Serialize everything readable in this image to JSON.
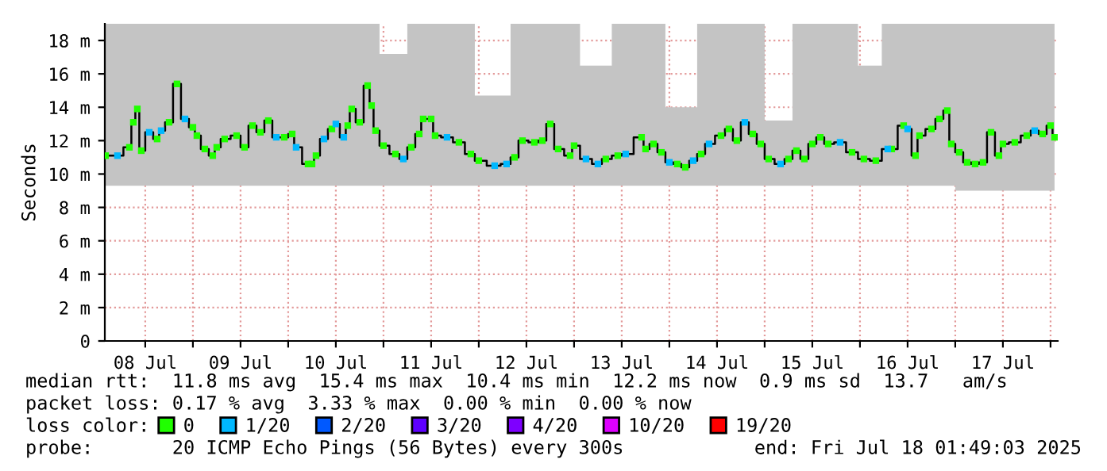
{
  "chart_data": {
    "type": "step",
    "ylabel": "Seconds",
    "x": [
      "2025-07-08T02:00",
      "2025-07-08T05:00",
      "2025-07-08T08:00",
      "2025-07-08T09:00",
      "2025-07-08T10:00",
      "2025-07-08T11:00",
      "2025-07-08T13:00",
      "2025-07-08T15:00",
      "2025-07-08T16:00",
      "2025-07-08T18:00",
      "2025-07-08T20:00",
      "2025-07-08T22:00",
      "2025-07-09T00:00",
      "2025-07-09T01:00",
      "2025-07-09T03:00",
      "2025-07-09T05:00",
      "2025-07-09T06:00",
      "2025-07-09T08:00",
      "2025-07-09T11:00",
      "2025-07-09T13:00",
      "2025-07-09T15:00",
      "2025-07-09T17:00",
      "2025-07-09T19:00",
      "2025-07-09T21:00",
      "2025-07-09T23:00",
      "2025-07-10T01:00",
      "2025-07-10T02:00",
      "2025-07-10T05:00",
      "2025-07-10T06:00",
      "2025-07-10T07:00",
      "2025-07-10T09:00",
      "2025-07-10T11:00",
      "2025-07-10T12:00",
      "2025-07-10T14:00",
      "2025-07-10T15:00",
      "2025-07-10T16:00",
      "2025-07-10T18:00",
      "2025-07-10T20:00",
      "2025-07-10T21:00",
      "2025-07-10T22:00",
      "2025-07-11T00:00",
      "2025-07-11T03:00",
      "2025-07-11T05:00",
      "2025-07-11T07:00",
      "2025-07-11T09:00",
      "2025-07-11T10:00",
      "2025-07-11T12:00",
      "2025-07-11T13:00",
      "2025-07-11T16:00",
      "2025-07-11T19:00",
      "2025-07-11T22:00",
      "2025-07-12T00:00",
      "2025-07-12T04:00",
      "2025-07-12T07:00",
      "2025-07-12T09:00",
      "2025-07-12T11:00",
      "2025-07-12T14:00",
      "2025-07-12T16:00",
      "2025-07-12T18:00",
      "2025-07-12T20:00",
      "2025-07-12T23:00",
      "2025-07-13T00:00",
      "2025-07-13T03:00",
      "2025-07-13T06:00",
      "2025-07-13T08:00",
      "2025-07-13T11:00",
      "2025-07-13T13:00",
      "2025-07-13T17:00",
      "2025-07-13T18:00",
      "2025-07-13T20:00",
      "2025-07-13T22:00",
      "2025-07-14T00:00",
      "2025-07-14T02:00",
      "2025-07-14T04:00",
      "2025-07-14T06:00",
      "2025-07-14T08:00",
      "2025-07-14T10:00",
      "2025-07-14T13:00",
      "2025-07-14T15:00",
      "2025-07-14T17:00",
      "2025-07-14T19:00",
      "2025-07-14T21:00",
      "2025-07-14T23:00",
      "2025-07-15T01:00",
      "2025-07-15T04:00",
      "2025-07-15T06:00",
      "2025-07-15T08:00",
      "2025-07-15T10:00",
      "2025-07-15T12:00",
      "2025-07-15T14:00",
      "2025-07-15T16:00",
      "2025-07-15T19:00",
      "2025-07-15T22:00",
      "2025-07-16T01:00",
      "2025-07-16T04:00",
      "2025-07-16T07:00",
      "2025-07-16T08:00",
      "2025-07-16T11:00",
      "2025-07-16T12:00",
      "2025-07-16T14:00",
      "2025-07-16T15:00",
      "2025-07-16T18:00",
      "2025-07-16T20:00",
      "2025-07-16T22:00",
      "2025-07-16T23:00",
      "2025-07-17T01:00",
      "2025-07-17T03:00",
      "2025-07-17T05:00",
      "2025-07-17T07:00",
      "2025-07-17T09:00",
      "2025-07-17T11:00",
      "2025-07-17T12:00",
      "2025-07-17T15:00",
      "2025-07-17T18:00",
      "2025-07-17T20:00",
      "2025-07-17T22:00",
      "2025-07-18T00:00",
      "2025-07-18T01:00"
    ],
    "series": [
      {
        "color": "#000000",
        "values": [
          11.1,
          11.1,
          11.6,
          13.1,
          13.9,
          11.4,
          12.5,
          12.1,
          12.6,
          13.1,
          15.4,
          13.3,
          12.8,
          12.3,
          11.5,
          11.1,
          11.6,
          12.1,
          12.3,
          11.6,
          12.9,
          12.5,
          13.2,
          12.2,
          12.2,
          12.4,
          11.6,
          10.6,
          10.6,
          11.1,
          12.1,
          12.7,
          13.0,
          12.2,
          12.9,
          13.9,
          13.1,
          15.3,
          14.1,
          12.6,
          11.7,
          11.2,
          10.9,
          11.6,
          12.4,
          13.3,
          13.3,
          12.3,
          12.2,
          11.9,
          11.2,
          10.8,
          10.5,
          10.6,
          11.0,
          12.0,
          11.9,
          12.0,
          13.0,
          11.5,
          11.1,
          11.7,
          10.9,
          10.6,
          10.9,
          11.1,
          11.2,
          12.2,
          11.5,
          11.8,
          11.3,
          10.7,
          10.6,
          10.4,
          10.8,
          11.2,
          11.8,
          12.3,
          12.7,
          12.0,
          13.1,
          12.4,
          11.8,
          10.9,
          10.6,
          10.9,
          11.4,
          10.9,
          11.8,
          12.2,
          11.8,
          11.9,
          11.3,
          10.9,
          10.8,
          11.5,
          11.5,
          12.9,
          12.7,
          11.1,
          12.3,
          12.7,
          13.3,
          13.8,
          11.8,
          11.3,
          10.7,
          10.6,
          10.7,
          12.5,
          11.1,
          11.8,
          11.9,
          12.3,
          12.6,
          12.4,
          12.9,
          12.2
        ],
        "lower": [
          9.3,
          9.3,
          9.3,
          9.3,
          9.3,
          9.3,
          9.3,
          9.3,
          9.3,
          9.3,
          9.3,
          9.3,
          9.3,
          9.3,
          9.3,
          9.3,
          9.3,
          9.3,
          9.3,
          9.3,
          9.3,
          9.3,
          9.3,
          9.3,
          9.3,
          9.3,
          9.3,
          9.3,
          9.3,
          9.3,
          9.3,
          9.3,
          9.3,
          9.3,
          9.3,
          9.3,
          9.3,
          9.3,
          9.3,
          9.3,
          9.3,
          9.3,
          9.3,
          9.3,
          9.3,
          9.3,
          9.3,
          9.3,
          9.3,
          9.3,
          9.3,
          9.3,
          9.3,
          9.3,
          9.3,
          9.3,
          9.3,
          9.3,
          9.3,
          9.3,
          9.3,
          9.3,
          9.3,
          9.3,
          9.3,
          9.3,
          9.3,
          9.3,
          9.3,
          9.3,
          9.3,
          9.3,
          9.3,
          9.3,
          9.3,
          9.3,
          9.3,
          9.3,
          9.3,
          9.3,
          9.3,
          9.3,
          9.3,
          9.3,
          9.3,
          9.3,
          9.3,
          9.3,
          9.3,
          9.3,
          9.3,
          9.3,
          9.3,
          9.3,
          9.3,
          9.3,
          9.3,
          9.3,
          9.3,
          9.3,
          9.3,
          9.3,
          9.3,
          9.3,
          9.3,
          9.0,
          9.0,
          9.0,
          9.0,
          9.0,
          9.0,
          9.0,
          9.0,
          9.0,
          9.0,
          9.0,
          9.0,
          9.0
        ],
        "upper": [
          19,
          19,
          19,
          19,
          19,
          19,
          19,
          19,
          19,
          19,
          19,
          19,
          19,
          19,
          19,
          19,
          19,
          19,
          19,
          19,
          19,
          19,
          19,
          19,
          19,
          19,
          19,
          19,
          19,
          19,
          19,
          19,
          19,
          19,
          19,
          19,
          19,
          19,
          19,
          19,
          17.2,
          17.2,
          17.2,
          19,
          19,
          19,
          19,
          19,
          19,
          19,
          19,
          14.7,
          14.7,
          14.7,
          19,
          19,
          19,
          19,
          19,
          19,
          19,
          19,
          16.5,
          16.5,
          16.5,
          19,
          19,
          19,
          19,
          19,
          19,
          14.0,
          14.0,
          14.0,
          14.0,
          19,
          19,
          19,
          19,
          19,
          19,
          19,
          19,
          13.2,
          13.2,
          13.2,
          19,
          19,
          19,
          19,
          19,
          19,
          19,
          16.5,
          16.5,
          19,
          19,
          19,
          19,
          19,
          19,
          19,
          19,
          19,
          19,
          19,
          19,
          19,
          19,
          19,
          19,
          19,
          19,
          19,
          19,
          19,
          19,
          19
        ]
      },
      {
        "type": "scatter",
        "marker": "square",
        "name": "0",
        "color": "#20ff00",
        "values": [
          11.1,
          null,
          11.6,
          13.1,
          13.9,
          11.4,
          null,
          12.1,
          null,
          13.1,
          15.4,
          null,
          12.8,
          12.3,
          11.5,
          11.1,
          11.6,
          12.1,
          12.3,
          11.6,
          12.9,
          12.5,
          13.2,
          null,
          12.2,
          12.4,
          null,
          10.6,
          10.6,
          11.1,
          null,
          12.7,
          null,
          null,
          12.9,
          13.9,
          13.1,
          15.3,
          14.1,
          12.6,
          11.7,
          11.2,
          null,
          11.6,
          12.4,
          13.3,
          13.3,
          12.3,
          null,
          11.9,
          11.2,
          10.8,
          null,
          null,
          11.0,
          12.0,
          11.9,
          12.0,
          13.0,
          11.5,
          11.1,
          11.7,
          null,
          null,
          10.9,
          11.1,
          null,
          12.2,
          11.5,
          11.8,
          11.3,
          null,
          10.6,
          10.4,
          null,
          11.2,
          null,
          12.3,
          12.7,
          12.0,
          null,
          12.4,
          11.8,
          10.9,
          null,
          10.9,
          11.4,
          10.9,
          11.8,
          12.2,
          11.8,
          null,
          11.3,
          10.9,
          10.8,
          null,
          11.5,
          12.9,
          null,
          11.1,
          12.3,
          12.7,
          13.3,
          13.8,
          11.8,
          11.3,
          10.7,
          10.6,
          10.7,
          12.5,
          11.1,
          11.8,
          11.9,
          12.3,
          null,
          12.4,
          12.9,
          12.2
        ]
      },
      {
        "type": "scatter",
        "marker": "square",
        "name": "1/20",
        "color": "#00b8ff",
        "values": [
          null,
          11.1,
          null,
          null,
          null,
          null,
          12.5,
          null,
          12.6,
          null,
          null,
          13.3,
          null,
          null,
          null,
          null,
          null,
          null,
          null,
          null,
          null,
          null,
          null,
          12.2,
          null,
          null,
          11.6,
          null,
          null,
          null,
          12.1,
          null,
          13.0,
          12.2,
          null,
          null,
          null,
          null,
          null,
          null,
          null,
          null,
          10.9,
          null,
          null,
          null,
          null,
          null,
          12.2,
          null,
          null,
          null,
          10.5,
          10.6,
          null,
          null,
          null,
          null,
          null,
          null,
          null,
          null,
          10.9,
          10.6,
          null,
          null,
          11.2,
          null,
          null,
          null,
          null,
          10.7,
          null,
          null,
          10.8,
          null,
          11.8,
          null,
          null,
          null,
          13.1,
          null,
          null,
          null,
          10.6,
          null,
          null,
          null,
          null,
          null,
          null,
          11.9,
          null,
          null,
          null,
          11.5,
          null,
          null,
          12.7,
          null,
          null,
          null,
          null,
          null,
          null,
          null,
          null,
          null,
          null,
          null,
          null,
          null,
          null,
          null,
          12.6,
          null,
          null,
          null
        ]
      },
      {
        "type": "scatter",
        "marker": "square",
        "name": "2/20",
        "color": "#0059ff",
        "values": [
          null,
          null,
          null,
          null,
          null,
          null,
          null,
          null,
          null,
          null,
          null,
          null,
          null,
          null,
          null,
          null,
          null,
          null,
          null,
          null,
          null,
          null,
          null,
          null,
          null,
          null,
          null,
          null,
          null,
          null,
          null,
          null,
          null,
          null,
          null,
          null,
          null,
          null,
          null,
          null,
          null,
          null,
          null,
          null,
          null,
          null,
          null,
          null,
          null,
          null,
          null,
          null,
          null,
          null,
          null,
          null,
          null,
          null,
          null,
          null,
          null,
          null,
          null,
          null,
          null,
          null,
          null,
          null,
          null,
          null,
          null,
          null,
          null,
          null,
          null,
          null,
          null,
          null,
          null,
          null,
          null,
          null,
          null,
          null,
          null,
          null,
          null,
          null,
          null,
          null,
          null,
          null,
          null,
          null,
          null,
          null,
          null,
          null,
          null,
          null,
          null,
          null,
          null,
          null,
          null,
          null,
          null,
          null,
          null,
          null,
          null,
          null,
          null,
          null,
          null,
          null,
          null,
          null
        ]
      },
      {
        "type": "scatter",
        "marker": "square",
        "name": "3/20",
        "color": "#5e00ff",
        "values": [
          null,
          null,
          null,
          null,
          null,
          null,
          null,
          null,
          null,
          null,
          null,
          null,
          null,
          null,
          null,
          null,
          null,
          null,
          null,
          null,
          null,
          null,
          null,
          null,
          null,
          null,
          null,
          null,
          null,
          null,
          null,
          null,
          null,
          null,
          null,
          null,
          null,
          null,
          null,
          null,
          null,
          null,
          null,
          null,
          null,
          null,
          null,
          null,
          null,
          null,
          null,
          null,
          null,
          null,
          null,
          null,
          null,
          null,
          null,
          null,
          null,
          null,
          null,
          null,
          null,
          null,
          null,
          null,
          null,
          null,
          null,
          null,
          null,
          null,
          null,
          null,
          null,
          null,
          null,
          null,
          null,
          null,
          null,
          null,
          null,
          null,
          null,
          null,
          null,
          null,
          null,
          null,
          null,
          null,
          null,
          null,
          null,
          null,
          null,
          null,
          null,
          null,
          null,
          null,
          null,
          null,
          null,
          null,
          null,
          null,
          null,
          null,
          null,
          null,
          null,
          null,
          null,
          null
        ]
      },
      {
        "type": "scatter",
        "marker": "square",
        "name": "4/20",
        "color": "#7e00ff",
        "values": [
          null,
          null,
          null,
          null,
          null,
          null,
          null,
          null,
          null,
          null,
          null,
          null,
          null,
          null,
          null,
          null,
          null,
          null,
          null,
          null,
          null,
          null,
          null,
          null,
          null,
          null,
          null,
          null,
          null,
          null,
          null,
          null,
          null,
          null,
          null,
          null,
          null,
          null,
          null,
          null,
          null,
          null,
          null,
          null,
          null,
          null,
          null,
          null,
          null,
          null,
          null,
          null,
          null,
          null,
          null,
          null,
          null,
          null,
          null,
          null,
          null,
          null,
          null,
          null,
          null,
          null,
          null,
          null,
          null,
          null,
          null,
          null,
          null,
          null,
          null,
          null,
          null,
          null,
          null,
          null,
          null,
          null,
          null,
          null,
          null,
          null,
          null,
          null,
          null,
          null,
          null,
          null,
          null,
          null,
          null,
          null,
          null,
          null,
          null,
          null,
          null,
          null,
          null,
          null,
          null,
          null,
          null,
          null,
          null,
          null,
          null,
          null,
          null,
          null,
          null,
          null,
          null,
          null
        ]
      },
      {
        "type": "scatter",
        "marker": "square",
        "name": "10/20",
        "color": "#dd00ff",
        "values": [
          null,
          null,
          null,
          null,
          null,
          null,
          null,
          null,
          null,
          null,
          null,
          null,
          null,
          null,
          null,
          null,
          null,
          null,
          null,
          null,
          null,
          null,
          null,
          null,
          null,
          null,
          null,
          null,
          null,
          null,
          null,
          null,
          null,
          null,
          null,
          null,
          null,
          null,
          null,
          null,
          null,
          null,
          null,
          null,
          null,
          null,
          null,
          null,
          null,
          null,
          null,
          null,
          null,
          null,
          null,
          null,
          null,
          null,
          null,
          null,
          null,
          null,
          null,
          null,
          null,
          null,
          null,
          null,
          null,
          null,
          null,
          null,
          null,
          null,
          null,
          null,
          null,
          null,
          null,
          null,
          null,
          null,
          null,
          null,
          null,
          null,
          null,
          null,
          null,
          null,
          null,
          null,
          null,
          null,
          null,
          null,
          null,
          null,
          null,
          null,
          null,
          null,
          null,
          null,
          null,
          null,
          null,
          null,
          null,
          null,
          null,
          null,
          null,
          null,
          null,
          null,
          null,
          null
        ]
      },
      {
        "type": "scatter",
        "marker": "square",
        "name": "19/20",
        "color": "#ff0000",
        "values": [
          null,
          null,
          null,
          null,
          null,
          null,
          null,
          null,
          null,
          null,
          null,
          null,
          null,
          null,
          null,
          null,
          null,
          null,
          null,
          null,
          null,
          null,
          null,
          null,
          null,
          null,
          null,
          null,
          null,
          null,
          null,
          null,
          null,
          null,
          null,
          null,
          null,
          null,
          null,
          null,
          null,
          null,
          null,
          null,
          null,
          null,
          null,
          null,
          null,
          null,
          null,
          null,
          null,
          null,
          null,
          null,
          null,
          null,
          null,
          null,
          null,
          null,
          null,
          null,
          null,
          null,
          null,
          null,
          null,
          null,
          null,
          null,
          null,
          null,
          null,
          null,
          null,
          null,
          null,
          null,
          null,
          null,
          null,
          null,
          null,
          null,
          null,
          null,
          null,
          null,
          null,
          null,
          null,
          null,
          null,
          null,
          null,
          null,
          null,
          null,
          null,
          null,
          null,
          null,
          null,
          null,
          null,
          null,
          null,
          null,
          null,
          null,
          null,
          null,
          null,
          null,
          null,
          null
        ]
      }
    ],
    "xlim": [
      "2025-07-08T01:49",
      "2025-07-18T01:49"
    ],
    "xticks": [
      {
        "value": "2025-07-08T12:00",
        "label": "08 Jul"
      },
      {
        "value": "2025-07-09T00:00",
        "label": null
      },
      {
        "value": "2025-07-09T12:00",
        "label": "09 Jul"
      },
      {
        "value": "2025-07-10T00:00",
        "label": null
      },
      {
        "value": "2025-07-10T12:00",
        "label": "10 Jul"
      },
      {
        "value": "2025-07-11T00:00",
        "label": null
      },
      {
        "value": "2025-07-11T12:00",
        "label": "11 Jul"
      },
      {
        "value": "2025-07-12T00:00",
        "label": null
      },
      {
        "value": "2025-07-12T12:00",
        "label": "12 Jul"
      },
      {
        "value": "2025-07-13T00:00",
        "label": null
      },
      {
        "value": "2025-07-13T12:00",
        "label": "13 Jul"
      },
      {
        "value": "2025-07-14T00:00",
        "label": null
      },
      {
        "value": "2025-07-14T12:00",
        "label": "14 Jul"
      },
      {
        "value": "2025-07-15T00:00",
        "label": null
      },
      {
        "value": "2025-07-15T12:00",
        "label": "15 Jul"
      },
      {
        "value": "2025-07-16T00:00",
        "label": null
      },
      {
        "value": "2025-07-16T12:00",
        "label": "16 Jul"
      },
      {
        "value": "2025-07-17T00:00",
        "label": null
      },
      {
        "value": "2025-07-17T12:00",
        "label": "17 Jul"
      },
      {
        "value": "2025-07-18T00:00",
        "label": null
      }
    ],
    "ylim": [
      0,
      19
    ],
    "yticks": [
      0,
      {
        "value": 2,
        "label": "2 m"
      },
      {
        "value": 4,
        "label": "4 m"
      },
      {
        "value": 6,
        "label": "6 m"
      },
      {
        "value": 8,
        "label": "8 m"
      },
      {
        "value": 10,
        "label": "10 m"
      },
      {
        "value": 12,
        "label": "12 m"
      },
      {
        "value": 14,
        "label": "14 m"
      },
      {
        "value": 16,
        "label": "16 m"
      },
      {
        "value": 18,
        "label": "18 m"
      }
    ],
    "grid": true,
    "legend": "bottom",
    "annotations": [
      "median rtt:  11.8 ms avg  15.4 ms max  10.4 ms min  12.2 ms now  0.9 ms sd  13.7   am/s",
      "packet loss: 0.17 % avg  3.33 % max  0.00 % min  0.00 % now",
      "loss color:",
      "probe:       20 ICMP Echo Pings (56 Bytes) every 300s",
      "end: Fri Jul 18 01:49:03 2025"
    ]
  }
}
